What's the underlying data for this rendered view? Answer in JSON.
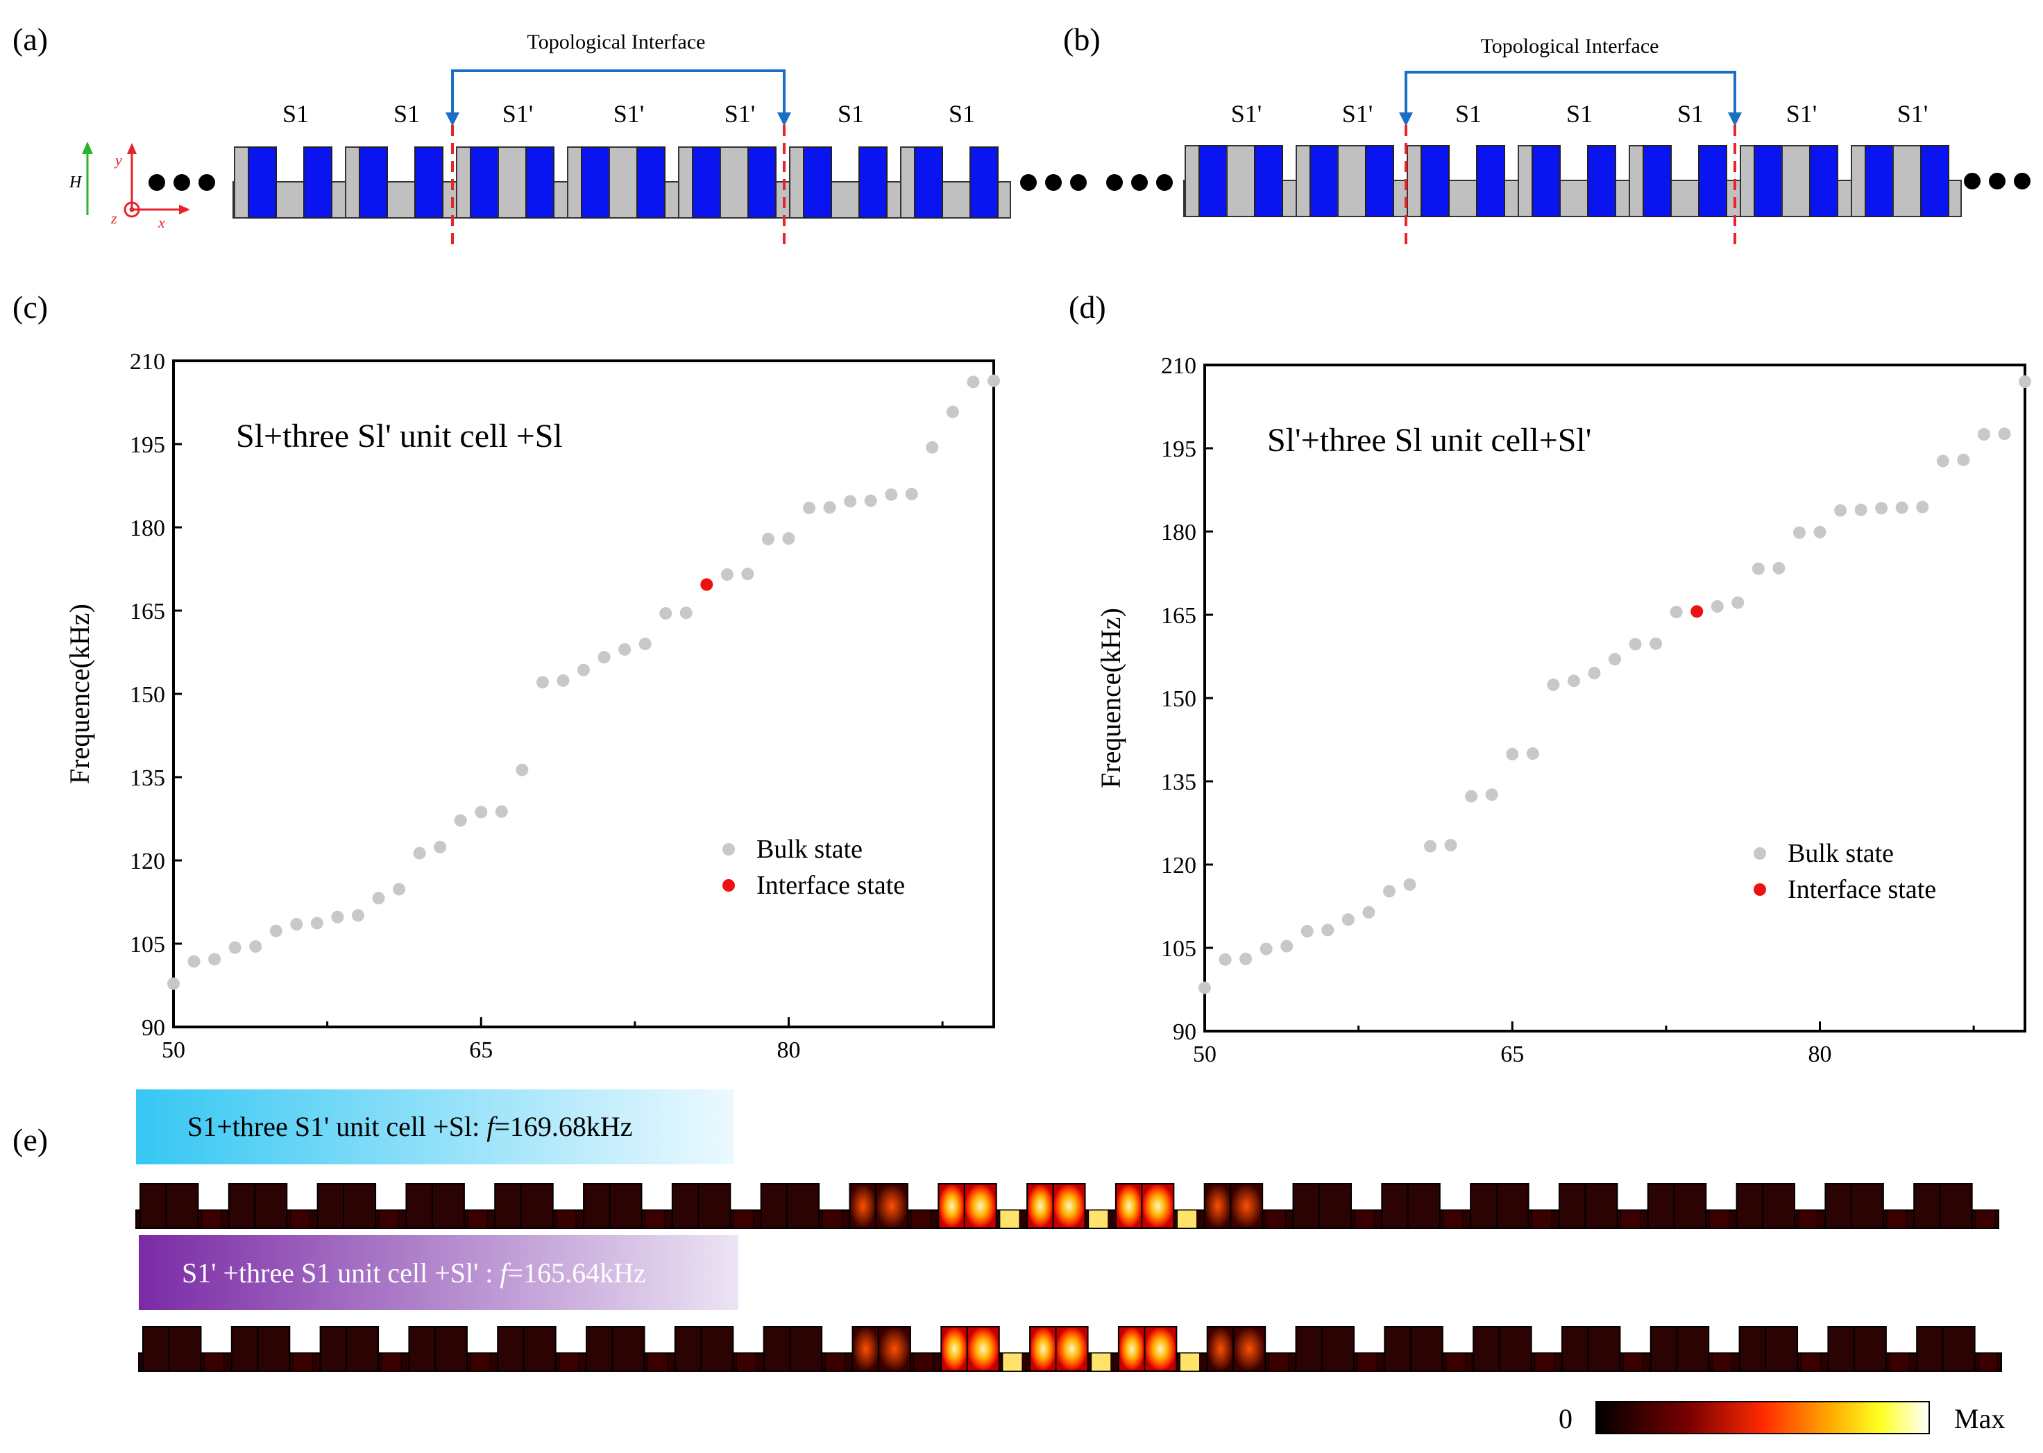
{
  "panels": {
    "a": {
      "label": "(a)",
      "interface_title": "Topological Interface",
      "cell_labels": [
        "S1",
        "S1",
        "S1'",
        "S1'",
        "S1'",
        "S1",
        "S1"
      ],
      "axis_labels": {
        "H": "H",
        "y": "y",
        "z": "z",
        "x": "x"
      }
    },
    "b": {
      "label": "(b)",
      "interface_title": "Topological Interface",
      "cell_labels": [
        "S1'",
        "S1'",
        "S1",
        "S1",
        "S1",
        "S1'",
        "S1'"
      ]
    },
    "c": {
      "label": "(c)"
    },
    "d": {
      "label": "(d)"
    },
    "e": {
      "label": "(e)",
      "banner1": "S1+three S1' unit cell +Sl: f=169.68kHz",
      "banner1_prefix": "S1+three S1' unit cell +Sl: ",
      "banner1_italic": "f",
      "banner1_suffix": "=169.68kHz",
      "banner2": "S1' +three S1 unit cell +Sl' : f=165.64kHz",
      "banner2_prefix": "S1' +three S1 unit cell +Sl' : ",
      "banner2_italic": "f",
      "banner2_suffix": "=165.64kHz",
      "colorbar_min": "0",
      "colorbar_max": "Max"
    }
  },
  "colors": {
    "blue_block": "#0a14f0",
    "gray_block": "#c0c0c0",
    "interface_line": "#e8232a",
    "arrow": "#1a6fc4",
    "bulk": "#c8c8c8",
    "interface": "#ee1111"
  },
  "chart_data": [
    {
      "id": "c",
      "type": "scatter",
      "title": "Sl+three Sl' unit cell +Sl",
      "xlabel": "",
      "ylabel": "Frequence(kHz)",
      "xlim": [
        50,
        90
      ],
      "ylim": [
        90,
        210
      ],
      "xticks": [
        50,
        65,
        80
      ],
      "yticks": [
        90,
        105,
        120,
        135,
        150,
        165,
        180,
        195,
        210
      ],
      "legend": [
        "Bulk state",
        "Interface state"
      ],
      "series": [
        {
          "name": "Bulk state",
          "x": [
            50,
            51,
            52,
            53,
            54,
            55,
            56,
            57,
            58,
            59,
            60,
            61,
            62,
            63,
            64,
            65,
            66,
            67,
            68,
            69,
            70,
            71,
            72,
            73,
            74,
            75,
            77,
            78,
            79,
            80,
            81,
            82,
            83,
            84,
            85,
            86,
            87,
            88,
            89,
            90
          ],
          "y": [
            97.8,
            101.8,
            102.2,
            104.3,
            104.5,
            107.3,
            108.5,
            108.7,
            109.8,
            110.1,
            113.2,
            114.8,
            121.3,
            122.4,
            127.2,
            128.7,
            128.8,
            136.3,
            152.1,
            152.4,
            154.3,
            156.6,
            158.0,
            159.0,
            164.5,
            164.6,
            171.5,
            171.6,
            177.9,
            178.0,
            183.5,
            183.6,
            184.7,
            184.8,
            185.9,
            186.0,
            194.4,
            200.8,
            206.2,
            206.4
          ]
        },
        {
          "name": "Interface state",
          "x": [
            76
          ],
          "y": [
            169.7
          ]
        }
      ]
    },
    {
      "id": "d",
      "type": "scatter",
      "title": "Sl'+three Sl unit cell+Sl'",
      "xlabel": "",
      "ylabel": "Frequence(kHz)",
      "xlim": [
        50,
        90
      ],
      "ylim": [
        90,
        210
      ],
      "xticks": [
        50,
        65,
        80
      ],
      "yticks": [
        90,
        105,
        120,
        135,
        150,
        165,
        180,
        195,
        210
      ],
      "legend": [
        "Bulk state",
        "Interface state"
      ],
      "series": [
        {
          "name": "Bulk state",
          "x": [
            50,
            51,
            52,
            53,
            54,
            55,
            56,
            57,
            58,
            59,
            60,
            61,
            62,
            63,
            64,
            65,
            66,
            67,
            68,
            69,
            70,
            71,
            72,
            73,
            75,
            76,
            77,
            78,
            79,
            80,
            81,
            82,
            83,
            84,
            85,
            86,
            87,
            88,
            89,
            90
          ],
          "y": [
            97.8,
            102.9,
            103.0,
            104.8,
            105.3,
            108.0,
            108.2,
            110.1,
            111.4,
            115.2,
            116.4,
            123.3,
            123.5,
            132.3,
            132.6,
            139.9,
            140.0,
            152.4,
            153.1,
            154.5,
            157.0,
            159.7,
            159.8,
            165.5,
            166.5,
            167.2,
            173.3,
            173.4,
            179.8,
            179.9,
            183.8,
            183.9,
            184.2,
            184.3,
            184.4,
            192.7,
            192.9,
            197.5,
            197.6,
            207.0
          ]
        },
        {
          "name": "Interface state",
          "x": [
            74
          ],
          "y": [
            165.6
          ]
        }
      ]
    }
  ]
}
